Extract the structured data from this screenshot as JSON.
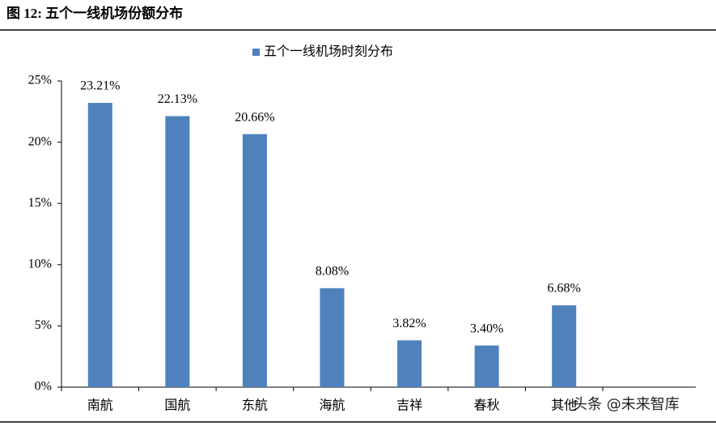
{
  "title": "图 12: 五个一线机场份额分布",
  "watermark": "头条 @未来智库",
  "chart_data": {
    "type": "bar",
    "categories": [
      "南航",
      "国航",
      "东航",
      "海航",
      "吉祥",
      "春秋",
      "其他"
    ],
    "series": [
      {
        "name": "五个一线机场时刻分布",
        "color": "#4f81bd",
        "values": [
          23.21,
          22.13,
          20.66,
          8.08,
          3.82,
          3.4,
          6.68
        ],
        "value_labels": [
          "23.21%",
          "22.13%",
          "20.66%",
          "8.08%",
          "3.82%",
          "3.40%",
          "6.68%"
        ]
      }
    ],
    "ylim": [
      0,
      25
    ],
    "yticks": [
      {
        "value": 0,
        "label": "0%"
      },
      {
        "value": 5,
        "label": "5%"
      },
      {
        "value": 10,
        "label": "10%"
      },
      {
        "value": 15,
        "label": "15%"
      },
      {
        "value": 20,
        "label": "20%"
      },
      {
        "value": 25,
        "label": "25%"
      }
    ],
    "grid": false,
    "legend": "top"
  }
}
